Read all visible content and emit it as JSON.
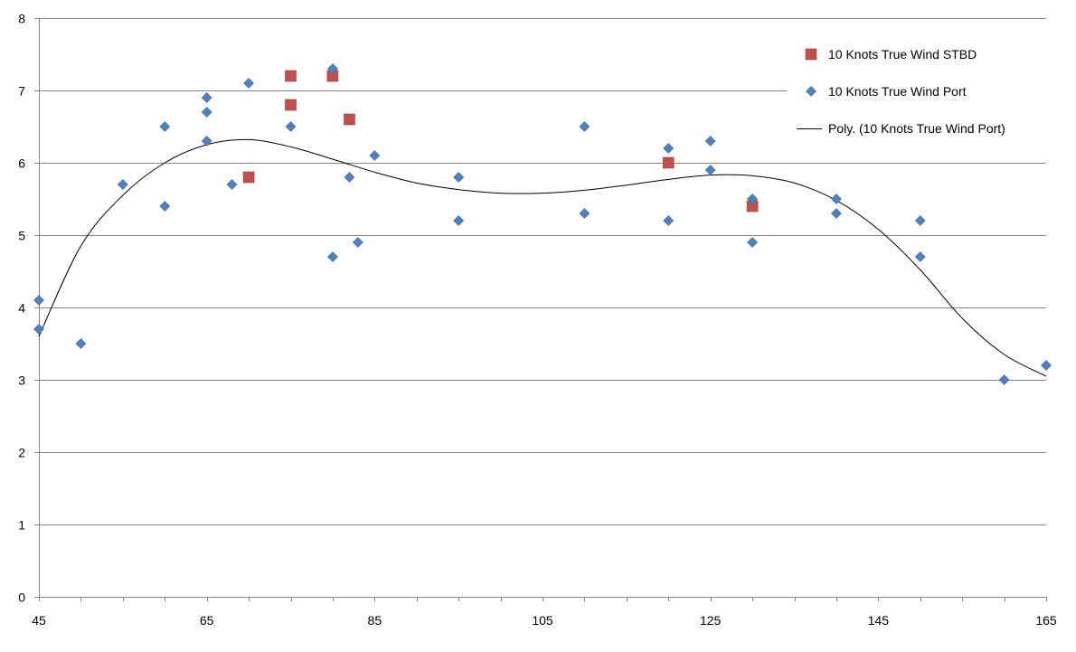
{
  "chart_data": {
    "type": "scatter",
    "x_axis": {
      "min": 45,
      "max": 165,
      "tick_labels": [
        45,
        65,
        85,
        105,
        125,
        145,
        165
      ],
      "minor_step": 5
    },
    "y_axis": {
      "min": 0,
      "max": 8,
      "tick_labels": [
        0,
        1,
        2,
        3,
        4,
        5,
        6,
        7,
        8
      ]
    },
    "grid": "horizontal major gridlines",
    "legend_position": "top-right",
    "series": [
      {
        "name": "10 Knots True Wind STBD",
        "marker": "square",
        "color": "#C0504D",
        "points": [
          {
            "x": 70,
            "y": 5.8
          },
          {
            "x": 75,
            "y": 7.2
          },
          {
            "x": 75,
            "y": 6.8
          },
          {
            "x": 80,
            "y": 7.2
          },
          {
            "x": 82,
            "y": 6.6
          },
          {
            "x": 120,
            "y": 6.0
          },
          {
            "x": 130,
            "y": 5.4
          }
        ]
      },
      {
        "name": "10 Knots True Wind Port",
        "marker": "diamond",
        "color": "#4F81BD",
        "points": [
          {
            "x": 45,
            "y": 4.1
          },
          {
            "x": 45,
            "y": 3.7
          },
          {
            "x": 50,
            "y": 3.5
          },
          {
            "x": 55,
            "y": 5.7
          },
          {
            "x": 60,
            "y": 6.5
          },
          {
            "x": 60,
            "y": 5.4
          },
          {
            "x": 65,
            "y": 6.9
          },
          {
            "x": 65,
            "y": 6.7
          },
          {
            "x": 65,
            "y": 6.3
          },
          {
            "x": 68,
            "y": 5.7
          },
          {
            "x": 70,
            "y": 7.1
          },
          {
            "x": 75,
            "y": 6.5
          },
          {
            "x": 80,
            "y": 7.3
          },
          {
            "x": 80,
            "y": 4.7
          },
          {
            "x": 82,
            "y": 5.8
          },
          {
            "x": 83,
            "y": 4.9
          },
          {
            "x": 85,
            "y": 6.1
          },
          {
            "x": 95,
            "y": 5.8
          },
          {
            "x": 95,
            "y": 5.2
          },
          {
            "x": 110,
            "y": 6.5
          },
          {
            "x": 110,
            "y": 5.3
          },
          {
            "x": 120,
            "y": 6.2
          },
          {
            "x": 120,
            "y": 5.2
          },
          {
            "x": 125,
            "y": 6.3
          },
          {
            "x": 125,
            "y": 5.9
          },
          {
            "x": 130,
            "y": 5.5
          },
          {
            "x": 130,
            "y": 4.9
          },
          {
            "x": 140,
            "y": 5.5
          },
          {
            "x": 140,
            "y": 5.3
          },
          {
            "x": 150,
            "y": 5.2
          },
          {
            "x": 150,
            "y": 4.7
          },
          {
            "x": 160,
            "y": 3.0
          },
          {
            "x": 165,
            "y": 3.2
          }
        ]
      }
    ],
    "trendline": {
      "name": "Poly. (10 Knots True Wind Port)",
      "type": "polynomial",
      "color": "#000000",
      "points": [
        {
          "x": 45,
          "y": 3.6
        },
        {
          "x": 50,
          "y": 4.85
        },
        {
          "x": 55,
          "y": 5.55
        },
        {
          "x": 60,
          "y": 6.0
        },
        {
          "x": 65,
          "y": 6.25
        },
        {
          "x": 70,
          "y": 6.32
        },
        {
          "x": 75,
          "y": 6.22
        },
        {
          "x": 80,
          "y": 6.05
        },
        {
          "x": 85,
          "y": 5.87
        },
        {
          "x": 90,
          "y": 5.72
        },
        {
          "x": 95,
          "y": 5.63
        },
        {
          "x": 100,
          "y": 5.58
        },
        {
          "x": 105,
          "y": 5.58
        },
        {
          "x": 110,
          "y": 5.62
        },
        {
          "x": 115,
          "y": 5.69
        },
        {
          "x": 120,
          "y": 5.77
        },
        {
          "x": 125,
          "y": 5.83
        },
        {
          "x": 130,
          "y": 5.82
        },
        {
          "x": 135,
          "y": 5.72
        },
        {
          "x": 140,
          "y": 5.48
        },
        {
          "x": 145,
          "y": 5.08
        },
        {
          "x": 150,
          "y": 4.52
        },
        {
          "x": 155,
          "y": 3.85
        },
        {
          "x": 160,
          "y": 3.35
        },
        {
          "x": 165,
          "y": 3.05
        }
      ]
    }
  }
}
